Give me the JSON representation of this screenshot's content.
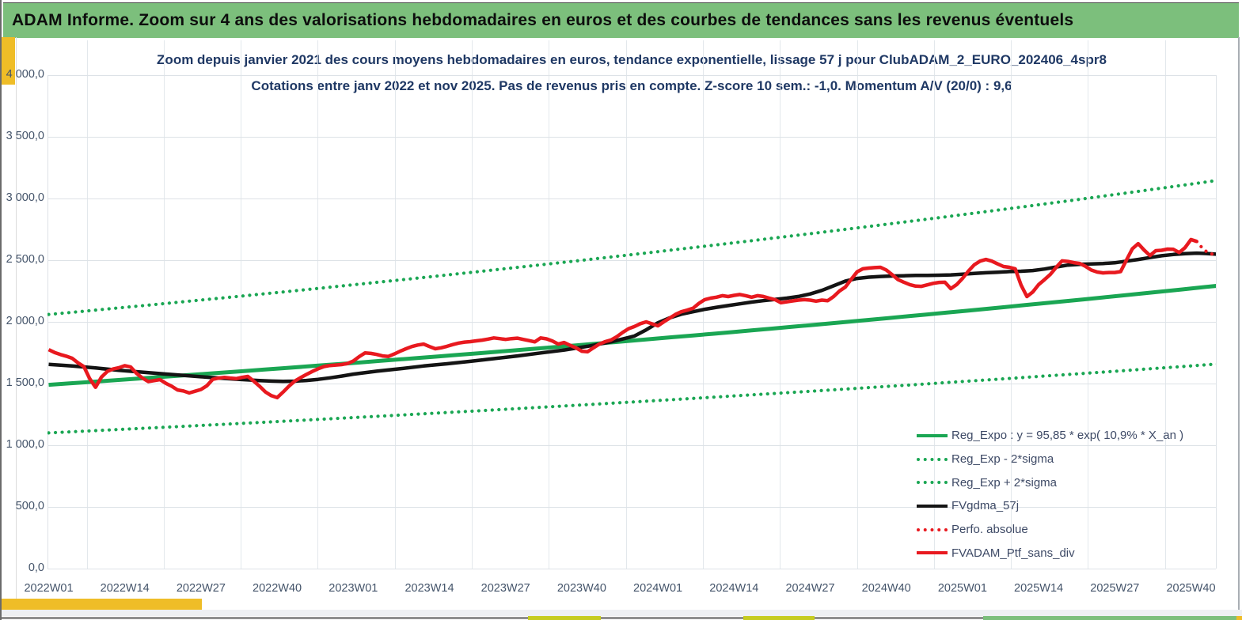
{
  "banner": {
    "title": "ADAM Informe. Zoom sur 4 ans des valorisations hebdomadaires en euros et des courbes de tendances sans les revenus éventuels",
    "background": "#7CBF7C"
  },
  "accents": {
    "gold": "#EFBD27",
    "olive": "#C6CC20",
    "bottom_green": "#7CBF7C"
  },
  "chart_data": {
    "type": "line",
    "title": "Zoom depuis janvier 2021 des cours moyens hebdomadaires en euros, tendance exponentielle, lissage 57 j pour ClubADAM_2_EURO_202406_4spr8",
    "subtitle": "Cotations entre janv 2022 et nov 2025. Pas de revenus pris en compte. Z-score 10 sem.: -1,0. Momentum A/V (20/0) : 9,6",
    "grid": true,
    "legend_position": "inside-lower-right",
    "x_unit": "weeks since 2022W01",
    "xlim": [
      0,
      200
    ],
    "ylim": [
      0,
      4000
    ],
    "y_tick_labels": [
      "4 000,0",
      "3 500,0",
      "3 000,0",
      "2 500,0",
      "2 000,0",
      "1 500,0",
      "1 000,0",
      "500,0",
      "0,0"
    ],
    "y_tick_values": [
      4000,
      3500,
      3000,
      2500,
      2000,
      1500,
      1000,
      500,
      0
    ],
    "x_tick_labels": [
      "2022W01",
      "2022W14",
      "2022W27",
      "2022W40",
      "2023W01",
      "2023W14",
      "2023W27",
      "2023W40",
      "2024W01",
      "2024W14",
      "2024W27",
      "2024W40",
      "2025W01",
      "2025W14",
      "2025W27",
      "2025W40"
    ],
    "x_tick_weeks": [
      0,
      13,
      26,
      39,
      52,
      65,
      78,
      91,
      104,
      117,
      130,
      143,
      156,
      169,
      182,
      195
    ],
    "series": [
      {
        "name": "Reg_Expo : y = 95,85 * exp( 10,9% *  X_an )",
        "style": "solid",
        "color": "#1AA653",
        "width": 5,
        "trend": "exponential",
        "start": {
          "week": 0,
          "value": 1490
        },
        "end": {
          "week": 200,
          "value": 2295
        }
      },
      {
        "name": "Reg_Exp - 2*sigma",
        "style": "dotted",
        "color": "#1AA653",
        "width": 4.2,
        "trend": "exponential",
        "start": {
          "week": 0,
          "value": 1100
        },
        "end": {
          "week": 200,
          "value": 1660
        }
      },
      {
        "name": "Reg_Exp + 2*sigma",
        "style": "dotted",
        "color": "#1AA653",
        "width": 4.2,
        "trend": "exponential",
        "start": {
          "week": 0,
          "value": 2060
        },
        "end": {
          "week": 200,
          "value": 3150
        }
      },
      {
        "name": "FVgdma_57j",
        "style": "solid",
        "color": "#141414",
        "width": 4.5,
        "points": [
          [
            0,
            1655
          ],
          [
            4,
            1643
          ],
          [
            8,
            1626
          ],
          [
            12,
            1607
          ],
          [
            16,
            1592
          ],
          [
            20,
            1577
          ],
          [
            24,
            1562
          ],
          [
            28,
            1548
          ],
          [
            32,
            1535
          ],
          [
            36,
            1524
          ],
          [
            38,
            1520
          ],
          [
            40,
            1517
          ],
          [
            42,
            1519
          ],
          [
            44,
            1525
          ],
          [
            46,
            1534
          ],
          [
            48,
            1546
          ],
          [
            50,
            1560
          ],
          [
            52,
            1576
          ],
          [
            56,
            1600
          ],
          [
            60,
            1620
          ],
          [
            64,
            1642
          ],
          [
            68,
            1660
          ],
          [
            72,
            1680
          ],
          [
            76,
            1702
          ],
          [
            80,
            1724
          ],
          [
            84,
            1748
          ],
          [
            88,
            1772
          ],
          [
            92,
            1802
          ],
          [
            96,
            1838
          ],
          [
            100,
            1885
          ],
          [
            102,
            1935
          ],
          [
            104,
            1992
          ],
          [
            106,
            2032
          ],
          [
            108,
            2062
          ],
          [
            110,
            2082
          ],
          [
            112,
            2102
          ],
          [
            114,
            2118
          ],
          [
            116,
            2132
          ],
          [
            118,
            2146
          ],
          [
            120,
            2160
          ],
          [
            122,
            2172
          ],
          [
            124,
            2182
          ],
          [
            126,
            2192
          ],
          [
            128,
            2206
          ],
          [
            130,
            2226
          ],
          [
            132,
            2255
          ],
          [
            134,
            2292
          ],
          [
            136,
            2330
          ],
          [
            138,
            2352
          ],
          [
            140,
            2362
          ],
          [
            142,
            2368
          ],
          [
            144,
            2372
          ],
          [
            146,
            2374
          ],
          [
            148,
            2376
          ],
          [
            150,
            2377
          ],
          [
            152,
            2378
          ],
          [
            154,
            2381
          ],
          [
            156,
            2386
          ],
          [
            158,
            2392
          ],
          [
            160,
            2398
          ],
          [
            162,
            2402
          ],
          [
            164,
            2408
          ],
          [
            166,
            2410
          ],
          [
            168,
            2416
          ],
          [
            170,
            2428
          ],
          [
            172,
            2445
          ],
          [
            174,
            2460
          ],
          [
            176,
            2466
          ],
          [
            178,
            2470
          ],
          [
            180,
            2473
          ],
          [
            182,
            2479
          ],
          [
            184,
            2492
          ],
          [
            186,
            2506
          ],
          [
            188,
            2521
          ],
          [
            190,
            2536
          ],
          [
            192,
            2546
          ],
          [
            194,
            2553
          ],
          [
            196,
            2557
          ],
          [
            198,
            2553
          ],
          [
            200,
            2546
          ]
        ]
      },
      {
        "name": "Perfo. absolue",
        "style": "dotted",
        "color": "#E8191F",
        "width": 4.2,
        "points": [
          [
            196,
            2652
          ],
          [
            197,
            2595
          ],
          [
            198,
            2556
          ],
          [
            199,
            2546
          ],
          [
            200,
            2550
          ]
        ]
      },
      {
        "name": "FVADAM_Ptf_sans_div",
        "style": "solid",
        "color": "#E8191F",
        "width": 4.5,
        "points": [
          [
            0,
            1775
          ],
          [
            1,
            1752
          ],
          [
            2,
            1735
          ],
          [
            3,
            1722
          ],
          [
            4,
            1705
          ],
          [
            5,
            1668
          ],
          [
            6,
            1638
          ],
          [
            7,
            1540
          ],
          [
            8,
            1470
          ],
          [
            9,
            1552
          ],
          [
            10,
            1598
          ],
          [
            11,
            1618
          ],
          [
            12,
            1628
          ],
          [
            13,
            1645
          ],
          [
            14,
            1634
          ],
          [
            15,
            1582
          ],
          [
            16,
            1545
          ],
          [
            17,
            1516
          ],
          [
            18,
            1524
          ],
          [
            19,
            1532
          ],
          [
            20,
            1502
          ],
          [
            21,
            1478
          ],
          [
            22,
            1448
          ],
          [
            23,
            1440
          ],
          [
            24,
            1424
          ],
          [
            25,
            1438
          ],
          [
            26,
            1452
          ],
          [
            27,
            1482
          ],
          [
            28,
            1534
          ],
          [
            29,
            1544
          ],
          [
            30,
            1550
          ],
          [
            31,
            1544
          ],
          [
            32,
            1540
          ],
          [
            33,
            1550
          ],
          [
            34,
            1558
          ],
          [
            35,
            1520
          ],
          [
            36,
            1478
          ],
          [
            37,
            1432
          ],
          [
            38,
            1402
          ],
          [
            39,
            1386
          ],
          [
            40,
            1430
          ],
          [
            41,
            1478
          ],
          [
            42,
            1520
          ],
          [
            43,
            1548
          ],
          [
            44,
            1574
          ],
          [
            45,
            1598
          ],
          [
            46,
            1620
          ],
          [
            47,
            1638
          ],
          [
            48,
            1646
          ],
          [
            49,
            1650
          ],
          [
            50,
            1654
          ],
          [
            51,
            1662
          ],
          [
            52,
            1682
          ],
          [
            53,
            1718
          ],
          [
            54,
            1748
          ],
          [
            55,
            1744
          ],
          [
            56,
            1736
          ],
          [
            57,
            1724
          ],
          [
            58,
            1720
          ],
          [
            59,
            1740
          ],
          [
            60,
            1762
          ],
          [
            61,
            1782
          ],
          [
            62,
            1800
          ],
          [
            63,
            1812
          ],
          [
            64,
            1820
          ],
          [
            65,
            1800
          ],
          [
            66,
            1782
          ],
          [
            67,
            1790
          ],
          [
            68,
            1802
          ],
          [
            69,
            1816
          ],
          [
            70,
            1828
          ],
          [
            71,
            1836
          ],
          [
            72,
            1840
          ],
          [
            73,
            1846
          ],
          [
            74,
            1852
          ],
          [
            75,
            1860
          ],
          [
            76,
            1870
          ],
          [
            77,
            1864
          ],
          [
            78,
            1858
          ],
          [
            79,
            1864
          ],
          [
            80,
            1868
          ],
          [
            81,
            1858
          ],
          [
            82,
            1848
          ],
          [
            83,
            1838
          ],
          [
            84,
            1870
          ],
          [
            85,
            1862
          ],
          [
            86,
            1845
          ],
          [
            87,
            1820
          ],
          [
            88,
            1833
          ],
          [
            89,
            1810
          ],
          [
            90,
            1790
          ],
          [
            91,
            1762
          ],
          [
            92,
            1758
          ],
          [
            93,
            1790
          ],
          [
            94,
            1820
          ],
          [
            95,
            1840
          ],
          [
            96,
            1853
          ],
          [
            97,
            1880
          ],
          [
            98,
            1915
          ],
          [
            99,
            1945
          ],
          [
            100,
            1962
          ],
          [
            101,
            1985
          ],
          [
            102,
            2000
          ],
          [
            103,
            1984
          ],
          [
            104,
            1968
          ],
          [
            105,
            2000
          ],
          [
            106,
            2030
          ],
          [
            107,
            2060
          ],
          [
            108,
            2082
          ],
          [
            109,
            2095
          ],
          [
            110,
            2110
          ],
          [
            111,
            2150
          ],
          [
            112,
            2180
          ],
          [
            113,
            2192
          ],
          [
            114,
            2200
          ],
          [
            115,
            2212
          ],
          [
            116,
            2205
          ],
          [
            117,
            2215
          ],
          [
            118,
            2222
          ],
          [
            119,
            2212
          ],
          [
            120,
            2200
          ],
          [
            121,
            2212
          ],
          [
            122,
            2206
          ],
          [
            123,
            2192
          ],
          [
            124,
            2180
          ],
          [
            125,
            2155
          ],
          [
            126,
            2162
          ],
          [
            127,
            2170
          ],
          [
            128,
            2176
          ],
          [
            129,
            2180
          ],
          [
            130,
            2176
          ],
          [
            131,
            2168
          ],
          [
            132,
            2176
          ],
          [
            133,
            2172
          ],
          [
            134,
            2205
          ],
          [
            135,
            2250
          ],
          [
            136,
            2282
          ],
          [
            137,
            2345
          ],
          [
            138,
            2405
          ],
          [
            139,
            2430
          ],
          [
            140,
            2436
          ],
          [
            141,
            2440
          ],
          [
            142,
            2442
          ],
          [
            143,
            2420
          ],
          [
            144,
            2382
          ],
          [
            145,
            2342
          ],
          [
            146,
            2321
          ],
          [
            147,
            2302
          ],
          [
            148,
            2290
          ],
          [
            149,
            2288
          ],
          [
            150,
            2300
          ],
          [
            151,
            2312
          ],
          [
            152,
            2320
          ],
          [
            153,
            2321
          ],
          [
            154,
            2269
          ],
          [
            155,
            2302
          ],
          [
            156,
            2352
          ],
          [
            157,
            2411
          ],
          [
            158,
            2462
          ],
          [
            159,
            2492
          ],
          [
            160,
            2506
          ],
          [
            161,
            2492
          ],
          [
            162,
            2470
          ],
          [
            163,
            2449
          ],
          [
            164,
            2442
          ],
          [
            165,
            2430
          ],
          [
            166,
            2298
          ],
          [
            167,
            2205
          ],
          [
            168,
            2242
          ],
          [
            169,
            2302
          ],
          [
            170,
            2342
          ],
          [
            171,
            2385
          ],
          [
            172,
            2442
          ],
          [
            173,
            2494
          ],
          [
            174,
            2490
          ],
          [
            175,
            2480
          ],
          [
            176,
            2474
          ],
          [
            177,
            2450
          ],
          [
            178,
            2420
          ],
          [
            179,
            2404
          ],
          [
            180,
            2397
          ],
          [
            181,
            2400
          ],
          [
            182,
            2400
          ],
          [
            183,
            2408
          ],
          [
            184,
            2502
          ],
          [
            185,
            2592
          ],
          [
            186,
            2634
          ],
          [
            187,
            2582
          ],
          [
            188,
            2538
          ],
          [
            189,
            2577
          ],
          [
            190,
            2580
          ],
          [
            191,
            2590
          ],
          [
            192,
            2588
          ],
          [
            193,
            2562
          ],
          [
            194,
            2602
          ],
          [
            195,
            2667
          ],
          [
            196,
            2652
          ]
        ]
      }
    ]
  }
}
